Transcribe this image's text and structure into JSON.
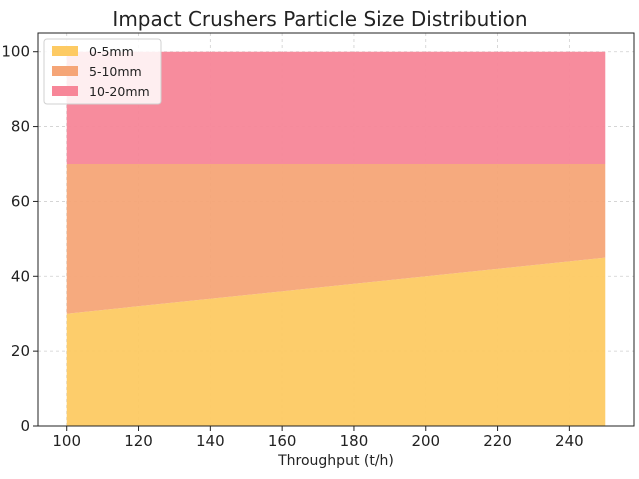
{
  "chart_data": {
    "type": "area",
    "stacked": true,
    "title": "Impact Crushers Particle Size Distribution",
    "xlabel": "Throughput (t/h)",
    "ylabel": "",
    "x": [
      100,
      250
    ],
    "xlim": [
      92,
      258
    ],
    "ylim": [
      0,
      105
    ],
    "xticks": [
      100,
      120,
      140,
      160,
      180,
      200,
      220,
      240
    ],
    "yticks": [
      0,
      20,
      40,
      60,
      80,
      100
    ],
    "grid": true,
    "legend_position": "upper-left",
    "series": [
      {
        "name": "0-5mm",
        "values": [
          30,
          45
        ],
        "color": "#fdca63"
      },
      {
        "name": "5-10mm",
        "values": [
          40,
          25
        ],
        "color": "#f5a577"
      },
      {
        "name": "10-20mm",
        "values": [
          30,
          30
        ],
        "color": "#f78698"
      }
    ]
  }
}
